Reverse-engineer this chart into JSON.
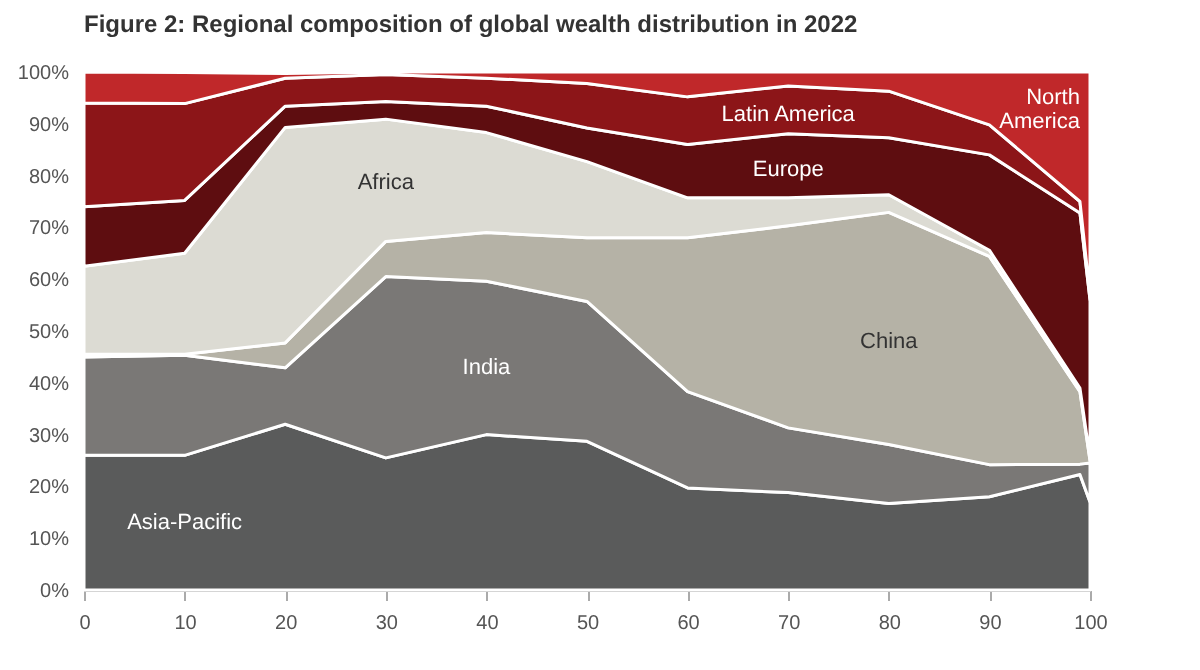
{
  "chart_data": {
    "type": "area",
    "stacked": true,
    "title": "Figure 2: Regional composition of global wealth distribution in 2022",
    "x": [
      0,
      10,
      20,
      30,
      40,
      50,
      60,
      70,
      80,
      90,
      99,
      100
    ],
    "series": [
      {
        "name": "Asia-Pacific",
        "color": "#5a5b5b",
        "values": [
          26,
          26,
          32,
          25.5,
          30,
          28.7,
          19.7,
          18.8,
          16.7,
          18,
          22.3,
          17
        ]
      },
      {
        "name": "India",
        "color": "#7a7876",
        "values": [
          19,
          19.3,
          10.9,
          35,
          29.6,
          27,
          18.6,
          12.5,
          11.4,
          6.2,
          2,
          7.5
        ]
      },
      {
        "name": "China",
        "color": "#b5b2a6",
        "values": [
          0.5,
          0.2,
          4.8,
          6.8,
          9.4,
          12.3,
          29.7,
          39,
          44.8,
          40.2,
          14,
          0.5
        ]
      },
      {
        "name": "Africa",
        "color": "#dcdbd3",
        "values": [
          17,
          19.5,
          41.6,
          23.6,
          19.3,
          14.7,
          7.7,
          5.4,
          3.4,
          1.2,
          0.7,
          0.5
        ]
      },
      {
        "name": "Europe",
        "color": "#5e0d10",
        "values": [
          11.5,
          10.2,
          4.1,
          3.4,
          5.1,
          6.5,
          10.3,
          12.4,
          11,
          18.4,
          33.8,
          30.5
        ]
      },
      {
        "name": "Latin America",
        "color": "#8c1518",
        "values": [
          20,
          18.7,
          5.4,
          5.2,
          5.4,
          8.6,
          9.2,
          9.2,
          9,
          5.8,
          2.2,
          1
        ]
      },
      {
        "name": "North America",
        "color": "#c0282a",
        "values": [
          6,
          6,
          0.9,
          0.5,
          1.2,
          2.2,
          4.8,
          2.7,
          3.7,
          10.2,
          25,
          43
        ]
      }
    ],
    "xlim": [
      0,
      100
    ],
    "xticks": [
      0,
      10,
      20,
      30,
      40,
      50,
      60,
      70,
      80,
      90,
      100
    ],
    "ylim": [
      0,
      100
    ],
    "yticks": [
      {
        "value": 0,
        "label": "0%"
      },
      {
        "value": 10,
        "label": "10%"
      },
      {
        "value": 20,
        "label": "20%"
      },
      {
        "value": 30,
        "label": "30%"
      },
      {
        "value": 40,
        "label": "40%"
      },
      {
        "value": 50,
        "label": "50%"
      },
      {
        "value": 60,
        "label": "60%"
      },
      {
        "value": 70,
        "label": "70%"
      },
      {
        "value": 80,
        "label": "80%"
      },
      {
        "value": 90,
        "label": "90%"
      },
      {
        "value": 100,
        "label": "100%"
      }
    ],
    "grid": false,
    "legend": false
  }
}
